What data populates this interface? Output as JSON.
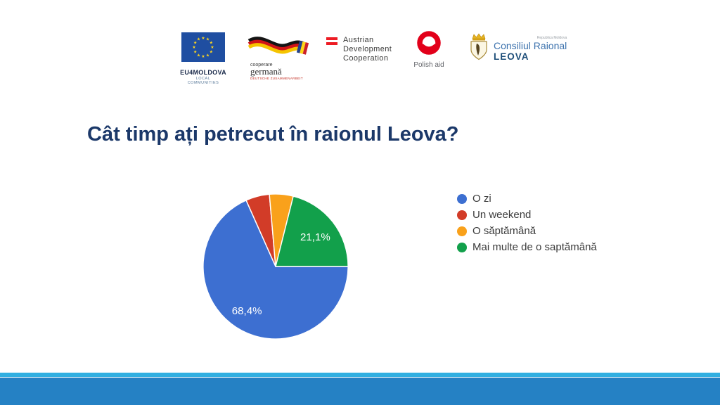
{
  "title": "Cât timp ați petrecut în raionul Leova?",
  "logos": {
    "eu": {
      "title": "EU4MOLDOVA",
      "subtitle": "LOCAL COMMUNITIES"
    },
    "german": {
      "line1": "cooperare",
      "line2": "germană",
      "line3": "DEUTSCHE ZUSAMMENARBEIT"
    },
    "austrian": {
      "line1": "Austrian",
      "line2": "Development",
      "line3": "Cooperation"
    },
    "polish": {
      "label": "Polish aid"
    },
    "leova": {
      "small": "Republica Moldova",
      "line1": "Consiliul Raional",
      "line2": "LEOVA"
    }
  },
  "chart_data": {
    "type": "pie",
    "title": "Cât timp ați petrecut în raionul Leova?",
    "labels": [
      "O zi",
      "Un weekend",
      "O săptămână",
      "Mai multe de o saptămână"
    ],
    "values": [
      68.4,
      5.3,
      5.3,
      21.1
    ],
    "unit": "%",
    "colors": [
      "#3d6fd1",
      "#d23c28",
      "#f9a11b",
      "#12a04b"
    ],
    "slice_labels": [
      "68,4%",
      "",
      "",
      "21,1%"
    ],
    "legend_position": "right",
    "start_angle_deg_clockwise_from_top": 90,
    "slice_border_color": "#ffffff"
  },
  "footer": {
    "strip_color": "#31afe1",
    "bar_color": "#2581c4"
  }
}
